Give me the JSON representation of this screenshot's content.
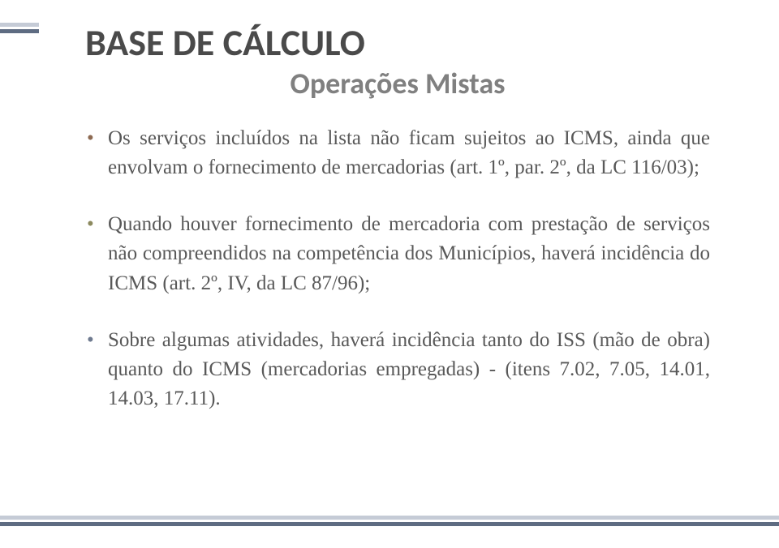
{
  "colors": {
    "stripe_light": "#c5cbd6",
    "stripe_dark": "#5e6c82",
    "title_color": "#4a4a4a",
    "subtitle_color": "#808080",
    "body_color": "#595959",
    "bullet_colors": [
      "#8d6a52",
      "#8c8a5f",
      "#6e7a8f"
    ]
  },
  "title": "BASE DE CÁLCULO",
  "subtitle": "Operações Mistas",
  "bullets": [
    "Os serviços incluídos na lista não ficam sujeitos ao ICMS, ainda que envolvam o fornecimento de mercadorias (art. 1º, par. 2º, da LC 116/03);",
    "Quando houver fornecimento de mercadoria com prestação de serviços não compreendidos na competência dos Municípios, haverá incidência do ICMS (art. 2º, IV, da LC 87/96);",
    "Sobre algumas atividades, haverá incidência tanto do ISS (mão de obra) quanto do ICMS (mercadorias empregadas) - (itens 7.02, 7.05, 14.01, 14.03, 17.11)."
  ]
}
